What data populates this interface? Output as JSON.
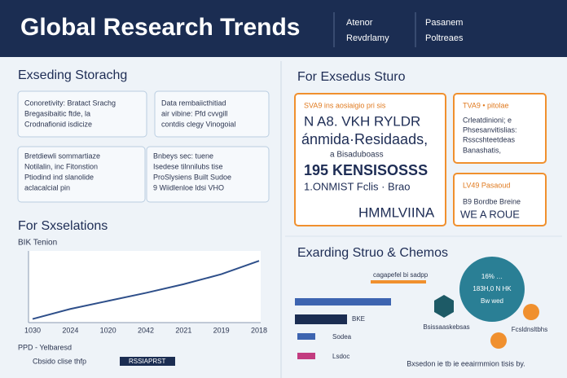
{
  "header": {
    "title": "Global Research Trends",
    "nav": [
      [
        "Atenor",
        "Revdrlamy"
      ],
      [
        "Pasanem",
        "Poltreaes"
      ]
    ]
  },
  "left": {
    "heading": "Exseding Storachg",
    "cards": [
      [
        "Conoretivity: Bratact Srachg",
        "Bregasibaitic ftde, la",
        "Crodnafionid isdicize"
      ],
      [
        "Data rembaiicthitiad",
        "air vibine: Pfd cvvgill",
        "contdis clegy Vinogoial"
      ],
      [
        "Bretdiewli sommartiaze",
        "Notilalin, inc Fitonstion",
        "Ptiodind ind slanolide",
        "aclacalcial pin"
      ],
      [
        "Bnbeys sec: tuene",
        "Isedese tilnnilubs tise",
        "ProSlysiens Built Sudoe",
        "9 Wiidlenloe ldsi VHO"
      ]
    ],
    "chart_heading": "For Sxselations",
    "chart_sub": "BIK Tenion",
    "foot_label": "PPD - Yelbaresd",
    "foot_text": "Cbsido clise thfp",
    "foot_badge": "RSSIAPRST"
  },
  "chart_data": {
    "type": "line",
    "categories": [
      "1030",
      "2024",
      "1020",
      "2042",
      "2021",
      "2019",
      "2018"
    ],
    "values": [
      3,
      18,
      30,
      42,
      55,
      70,
      90
    ],
    "color": "#2e4f8a",
    "ylim": [
      0,
      100
    ]
  },
  "right": {
    "heading": "For Exsedus Sturo",
    "main_card": [
      "SVA9 ins aosiaigio pri sis",
      "N A8. VKH RYLDR",
      "ánmida·Residaads,",
      "a Bisaduboass",
      "195 KENSISOSSS",
      "1.ONMIST Fclis · Brao",
      "HMMLVIINA"
    ],
    "card_a": [
      "TVA9 • pitolae",
      "Crleatdinioni; e",
      "Phsesanvitislias:",
      "Rsscshteetdeas",
      "Banashatis,"
    ],
    "card_b": [
      "LV49 Pasaoud",
      "B9 Bordbe Breine",
      "WE A ROUE"
    ],
    "heading2": "Exarding Struo & Chemos",
    "bar_top": "cagapefel bi sadpp",
    "bar_labels": [
      "BKE",
      "Sodea",
      "Lsdoc"
    ],
    "circle": [
      "16% …",
      "183H,0 N HK",
      "Bw wed"
    ],
    "hex_label": "Bsissaaskebsas",
    "dot_label": "Fcsldnsltbhs",
    "footer": "Bxsedon ie tb ie eeairmmion tisis by."
  }
}
